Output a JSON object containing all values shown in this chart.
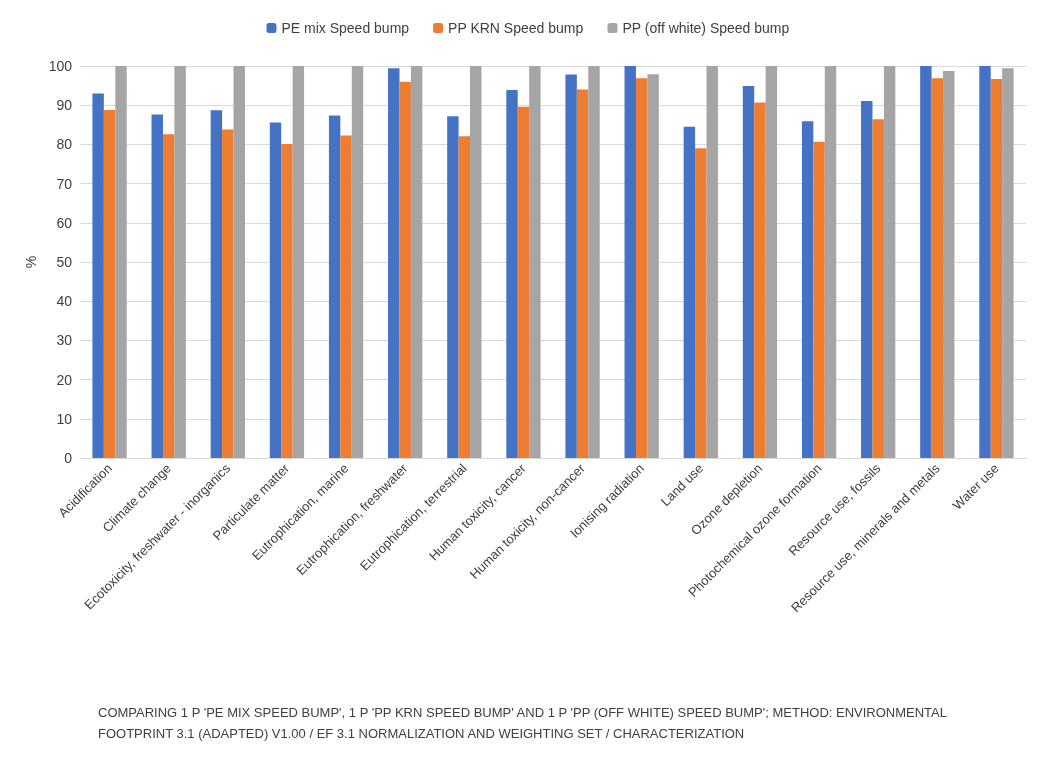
{
  "chart_data": {
    "type": "bar",
    "ylabel": "%",
    "categories": [
      "Acidification",
      "Climate change",
      "Ecotoxicity, freshwater - inorganics",
      "Particulate matter",
      "Eutrophication, marine",
      "Eutrophication, freshwater",
      "Eutrophication, terrestrial",
      "Human toxicity, cancer",
      "Human toxicity, non-cancer",
      "Ionising radiation",
      "Land use",
      "Ozone depletion",
      "Photochemical ozone formation",
      "Resource use, fossils",
      "Resource use, minerals and metals",
      "Water use"
    ],
    "series": [
      {
        "name": "PE mix Speed bump",
        "color": "#4472c4",
        "values": [
          93,
          87.6,
          88.7,
          85.6,
          87.4,
          99.4,
          87.2,
          93.9,
          97.8,
          100,
          84.5,
          94.9,
          85.9,
          91.1,
          100,
          100
        ]
      },
      {
        "name": "PP KRN Speed bump",
        "color": "#ed7d31",
        "values": [
          88.8,
          82.6,
          83.8,
          80.1,
          82.3,
          96,
          82.1,
          89.6,
          94,
          96.9,
          79,
          90.7,
          80.7,
          86.4,
          96.9,
          96.7
        ]
      },
      {
        "name": "PP (off white) Speed bump",
        "color": "#a5a5a5",
        "values": [
          100,
          100,
          100,
          100,
          100,
          100,
          100,
          100,
          100,
          97.9,
          100,
          100,
          100,
          100,
          98.7,
          99.4
        ]
      }
    ],
    "ylim": [
      0,
      100
    ],
    "yticks": [
      0,
      10,
      20,
      30,
      40,
      50,
      60,
      70,
      80,
      90,
      100
    ],
    "grid": "y",
    "legend": "top",
    "annotations": [
      "COMPARING 1 P 'PE MIX SPEED BUMP', 1 P 'PP KRN SPEED BUMP' AND 1 P 'PP (OFF WHITE) SPEED BUMP'; METHOD: ENVIRONMENTAL FOOTPRINT 3.1 (ADAPTED) V1.00 / EF 3.1 NORMALIZATION AND WEIGHTING SET / CHARACTERIZATION"
    ]
  }
}
